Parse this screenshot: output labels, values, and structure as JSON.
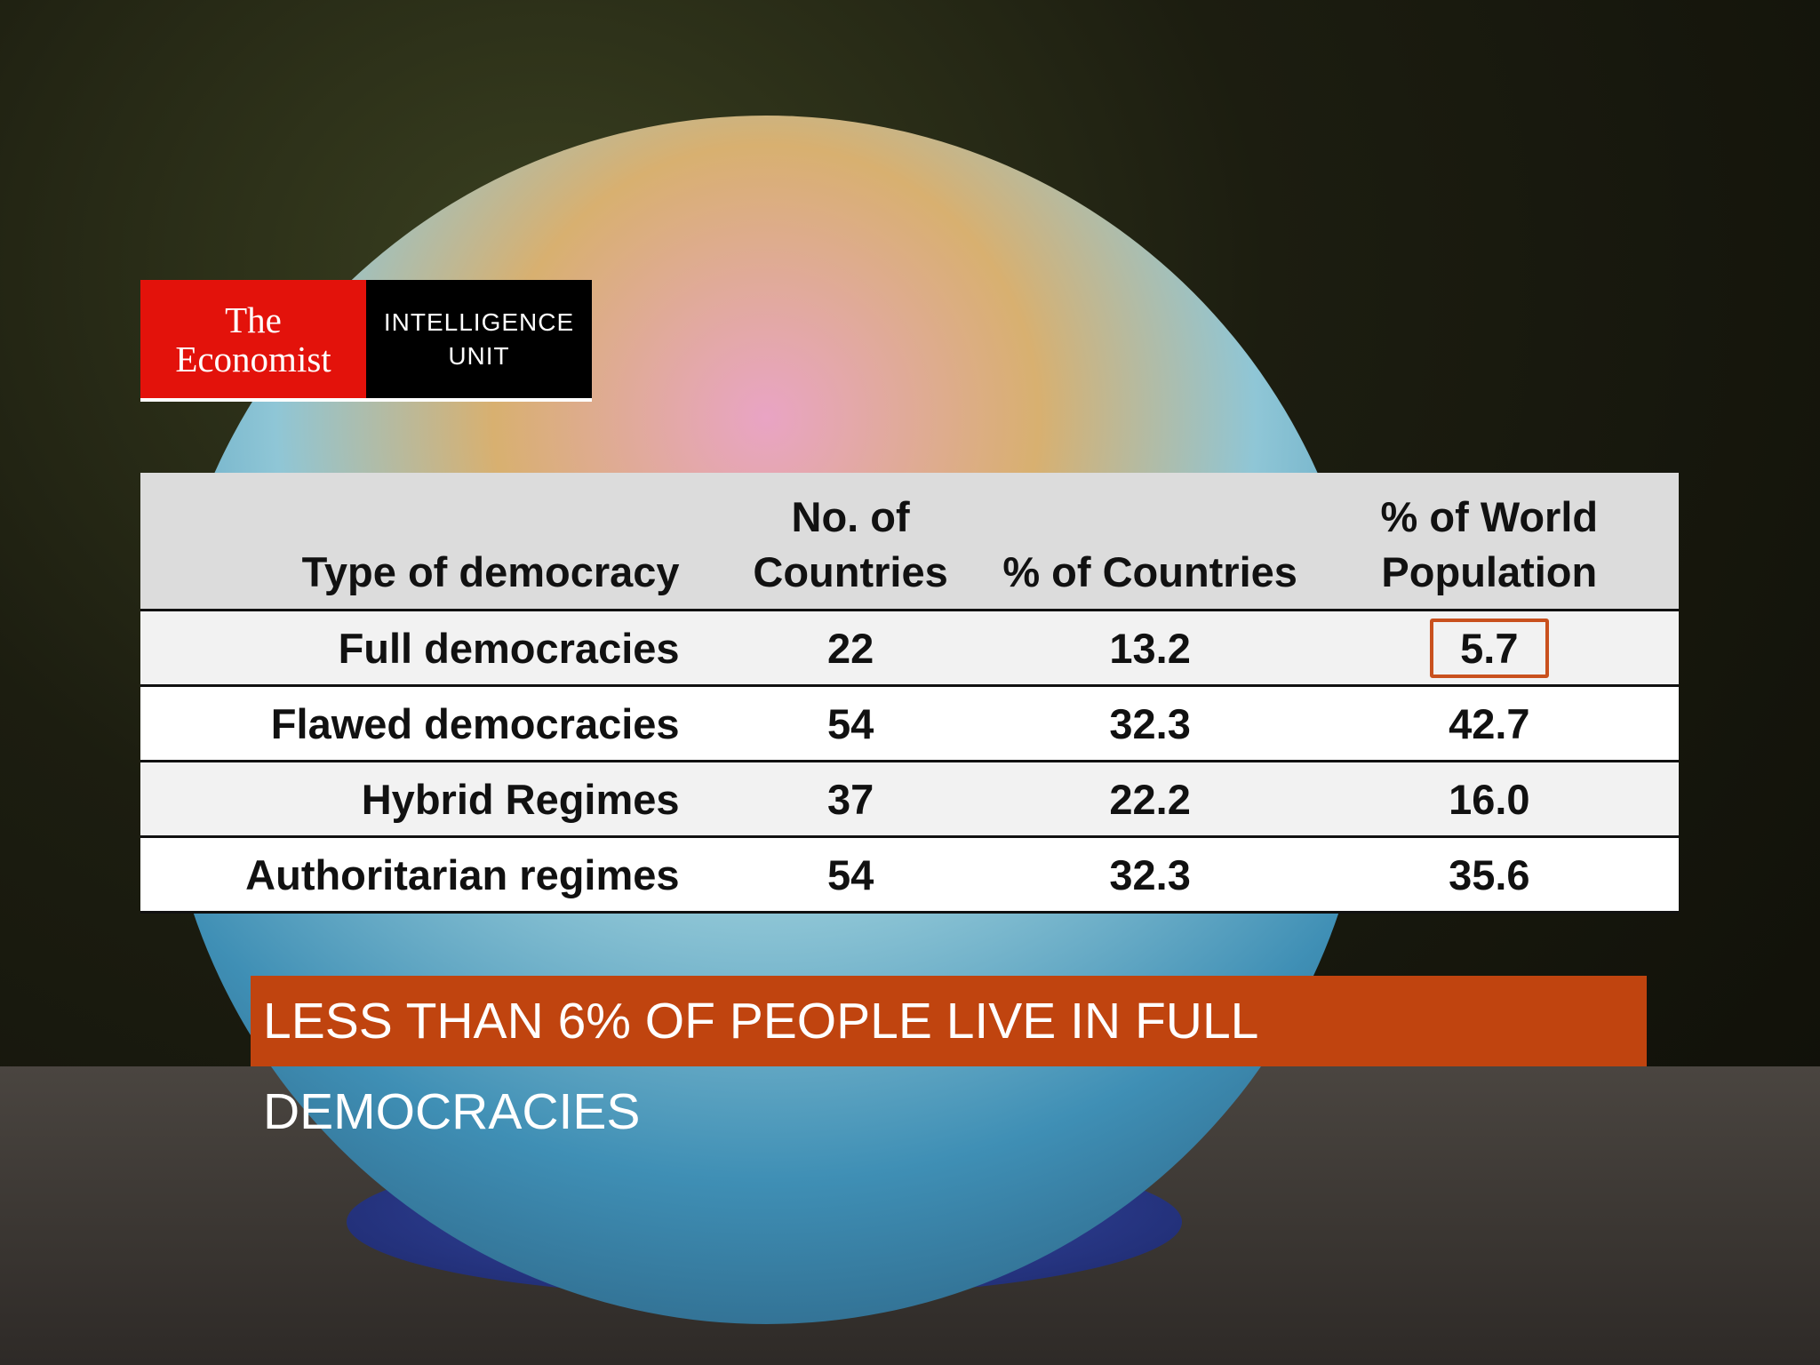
{
  "logo": {
    "brand": [
      "The",
      "Economist"
    ],
    "unit": [
      "INTELLIGENCE",
      "UNIT"
    ]
  },
  "table": {
    "header": [
      "Type of democracy",
      "No. of Countries",
      "% of Countries",
      "% of World Population"
    ],
    "rows": [
      [
        "Full democracies",
        "22",
        "13.2",
        "5.7"
      ],
      [
        "Flawed democracies",
        "54",
        "32.3",
        "42.7"
      ],
      [
        "Hybrid Regimes",
        "37",
        "22.2",
        "16.0"
      ],
      [
        "Authoritarian regimes",
        "54",
        "32.3",
        "35.6"
      ]
    ]
  },
  "banner": "LESS THAN 6% OF PEOPLE LIVE IN FULL DEMOCRACIES"
}
